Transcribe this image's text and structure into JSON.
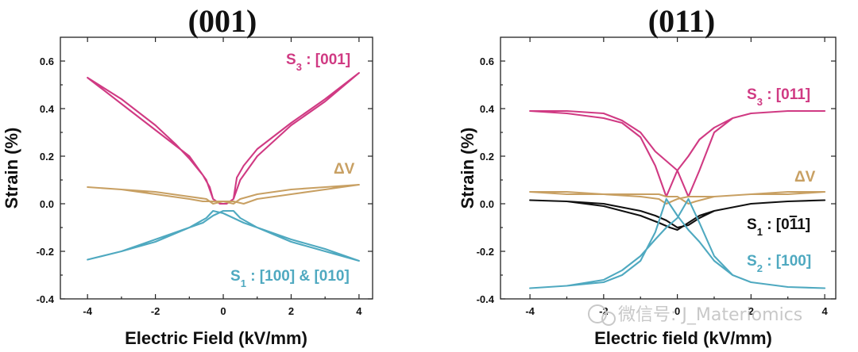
{
  "chart_data": [
    {
      "type": "line",
      "title": "(001)",
      "xlabel": "Electric Field (kV/mm)",
      "ylabel": "Strain (%)",
      "xlim": [
        -4.8,
        4.4
      ],
      "ylim": [
        -0.4,
        0.7
      ],
      "xticks": [
        "-4",
        "-2",
        "0",
        "2",
        "4"
      ],
      "yticks": [
        "-0.4",
        "-0.2",
        "0.0",
        "0.2",
        "0.4",
        "0.6"
      ],
      "series": [
        {
          "name": "S3 : [001]",
          "label_main": "S",
          "label_sub": "3",
          "label_rest": " : [001]",
          "color": "#d03a83",
          "x": [
            -4,
            -3,
            -2,
            -1.4,
            -1,
            -0.6,
            -0.4,
            -0.3,
            -0.1,
            0.1,
            0.3,
            0.5,
            1,
            2,
            3,
            4,
            3,
            2,
            1,
            0.6,
            0.4,
            0.3,
            0.1,
            -0.1,
            -0.3,
            -0.5,
            -1,
            -2,
            -3,
            -4
          ],
          "y": [
            0.53,
            0.44,
            0.33,
            0.25,
            0.19,
            0.12,
            0.07,
            0.02,
            0.0,
            0.0,
            0.02,
            0.1,
            0.2,
            0.33,
            0.43,
            0.55,
            0.44,
            0.34,
            0.23,
            0.16,
            0.11,
            0.02,
            0.0,
            0.0,
            0.02,
            0.1,
            0.2,
            0.31,
            0.42,
            0.53
          ]
        },
        {
          "name": "ΔV",
          "label_main": "ΔV",
          "label_sub": "",
          "label_rest": "",
          "color": "#c8a063",
          "x": [
            -4,
            -3,
            -2,
            -1,
            -0.5,
            -0.3,
            0,
            0.3,
            0.6,
            1,
            2,
            3,
            4,
            3,
            2,
            1,
            0.5,
            0.3,
            0,
            -0.3,
            -0.6,
            -1,
            -2,
            -3,
            -4
          ],
          "y": [
            0.07,
            0.06,
            0.05,
            0.03,
            0.02,
            0.0,
            0.01,
            0.01,
            0.0,
            0.02,
            0.04,
            0.06,
            0.08,
            0.07,
            0.06,
            0.04,
            0.02,
            0.0,
            0.01,
            0.01,
            0.01,
            0.02,
            0.04,
            0.06,
            0.07
          ]
        },
        {
          "name": "S1 : [100] & [010]",
          "label_main": "S",
          "label_sub": "1",
          "label_rest": " : [100] & [010]",
          "color": "#4fa9c0",
          "x": [
            -4,
            -3,
            -2,
            -1,
            -0.5,
            -0.3,
            0,
            0.3,
            0.6,
            1,
            2,
            3,
            4,
            3,
            2,
            1,
            0.5,
            0.3,
            0,
            -0.3,
            -0.6,
            -1,
            -2,
            -3,
            -4
          ],
          "y": [
            -0.235,
            -0.2,
            -0.16,
            -0.1,
            -0.06,
            -0.03,
            -0.04,
            -0.06,
            -0.08,
            -0.1,
            -0.15,
            -0.19,
            -0.24,
            -0.2,
            -0.16,
            -0.1,
            -0.06,
            -0.03,
            -0.03,
            -0.05,
            -0.08,
            -0.1,
            -0.15,
            -0.2,
            -0.235
          ]
        }
      ]
    },
    {
      "type": "line",
      "title": "(011)",
      "xlabel": "Electric field (kV/mm)",
      "ylabel": "Strain (%)",
      "xlim": [
        -4.8,
        4.3
      ],
      "ylim": [
        -0.4,
        0.7
      ],
      "xticks": [
        "-4",
        "-2",
        "0",
        "2",
        "4"
      ],
      "yticks": [
        "-0.4",
        "-0.2",
        "0.0",
        "0.2",
        "0.4",
        "0.6"
      ],
      "series": [
        {
          "name": "S3 : [011]",
          "label_main": "S",
          "label_sub": "3",
          "label_rest": " : [011]",
          "color": "#d03a83",
          "x": [
            -4,
            -3,
            -2,
            -1.5,
            -1,
            -0.6,
            -0.3,
            0,
            0.3,
            0.6,
            1,
            1.5,
            2,
            3,
            4,
            3,
            2,
            1.5,
            1,
            0.6,
            0.3,
            0,
            -0.3,
            -0.6,
            -1,
            -1.5,
            -2,
            -3,
            -4
          ],
          "y": [
            0.39,
            0.38,
            0.36,
            0.34,
            0.28,
            0.16,
            0.03,
            0.14,
            0.2,
            0.27,
            0.32,
            0.36,
            0.38,
            0.39,
            0.39,
            0.39,
            0.38,
            0.36,
            0.3,
            0.14,
            0.03,
            0.14,
            0.18,
            0.22,
            0.3,
            0.35,
            0.38,
            0.39,
            0.39
          ]
        },
        {
          "name": "ΔV",
          "label_main": "ΔV",
          "label_sub": "",
          "label_rest": "",
          "color": "#c8a063",
          "x": [
            -4,
            -3,
            -2,
            -1,
            -0.5,
            -0.3,
            0,
            0.3,
            0.5,
            1,
            2,
            3,
            4,
            3,
            2,
            1,
            0.5,
            0.3,
            0,
            -0.3,
            -0.5,
            -1,
            -2,
            -3,
            -4
          ],
          "y": [
            0.05,
            0.05,
            0.04,
            0.03,
            0.02,
            0.0,
            0.02,
            0.03,
            0.03,
            0.03,
            0.04,
            0.04,
            0.05,
            0.05,
            0.04,
            0.03,
            0.01,
            0.0,
            0.03,
            0.03,
            0.04,
            0.04,
            0.04,
            0.04,
            0.05
          ]
        },
        {
          "name": "S1 : [0-11]",
          "label_main": "S",
          "label_sub": "1",
          "label_rest": " : [0",
          "label_bar": "1",
          "label_tail": "1]",
          "color": "#111111",
          "x": [
            -4,
            -3,
            -2,
            -1,
            -0.5,
            -0.2,
            0,
            0.3,
            0.6,
            1,
            2,
            3,
            4,
            3,
            2,
            1,
            0.6,
            0.3,
            0,
            -0.3,
            -0.6,
            -1,
            -2,
            -3,
            -4
          ],
          "y": [
            0.015,
            0.01,
            -0.01,
            -0.05,
            -0.08,
            -0.1,
            -0.11,
            -0.08,
            -0.05,
            -0.03,
            0.0,
            0.01,
            0.015,
            0.01,
            0.0,
            -0.03,
            -0.06,
            -0.09,
            -0.1,
            -0.07,
            -0.05,
            -0.03,
            0.0,
            0.01,
            0.015
          ]
        },
        {
          "name": "S2 : [100]",
          "label_main": "S",
          "label_sub": "2",
          "label_rest": " : [100]",
          "color": "#4fa9c0",
          "x": [
            -4,
            -3,
            -2,
            -1.5,
            -1,
            -0.6,
            -0.3,
            0,
            0.3,
            0.6,
            1,
            1.5,
            2,
            3,
            4,
            3,
            2,
            1.5,
            1,
            0.6,
            0.3,
            0,
            -0.3,
            -0.6,
            -1,
            -1.5,
            -2,
            -3,
            -4
          ],
          "y": [
            -0.355,
            -0.345,
            -0.33,
            -0.3,
            -0.24,
            -0.12,
            0.02,
            -0.05,
            -0.11,
            -0.16,
            -0.24,
            -0.3,
            -0.33,
            -0.35,
            -0.355,
            -0.35,
            -0.33,
            -0.3,
            -0.22,
            -0.08,
            0.02,
            -0.06,
            -0.1,
            -0.15,
            -0.22,
            -0.28,
            -0.32,
            -0.345,
            -0.355
          ]
        }
      ]
    }
  ],
  "watermark": "微信号: J_Materiomics"
}
